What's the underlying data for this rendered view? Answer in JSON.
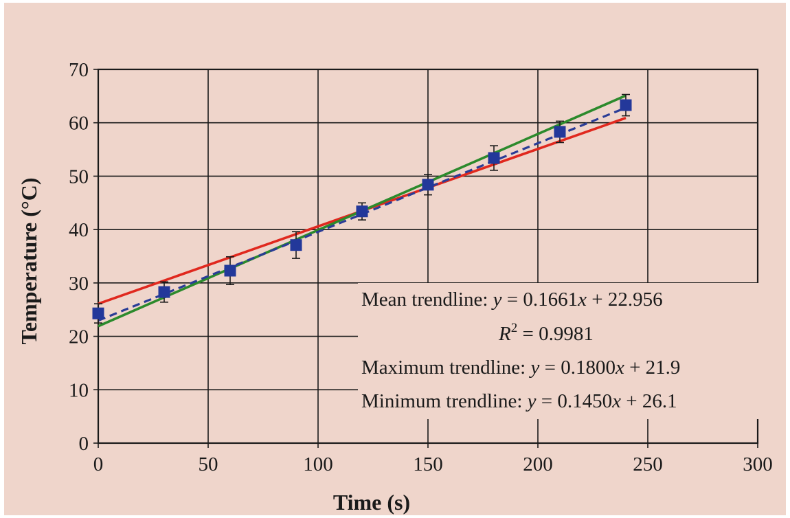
{
  "chart_data": {
    "type": "scatter",
    "title": "",
    "xlabel": "Time (s)",
    "ylabel": "Temperature (°C)",
    "xlim": [
      0,
      300
    ],
    "ylim": [
      0,
      70
    ],
    "xticks": [
      0,
      50,
      100,
      150,
      200,
      250,
      300
    ],
    "yticks": [
      0,
      10,
      20,
      30,
      40,
      50,
      60,
      70
    ],
    "grid": true,
    "points": {
      "x": [
        0,
        30,
        60,
        90,
        120,
        150,
        180,
        210,
        240
      ],
      "y": [
        24.3,
        28.3,
        32.3,
        37.1,
        43.4,
        48.4,
        53.4,
        58.3,
        63.3
      ],
      "error": [
        1.8,
        1.9,
        2.6,
        2.5,
        1.6,
        1.9,
        2.3,
        2.0,
        2.0
      ],
      "color": "#23389a"
    },
    "lines": [
      {
        "label": "Mean trendline",
        "slope": 0.1661,
        "intercept": 22.956,
        "x_range": [
          0,
          240
        ],
        "color": "#2a3c96",
        "style": "dashed"
      },
      {
        "label": "Maximum trendline",
        "slope": 0.18,
        "intercept": 21.9,
        "x_range": [
          0,
          240
        ],
        "color": "#2c8a2c",
        "style": "solid"
      },
      {
        "label": "Minimum trendline",
        "slope": 0.145,
        "intercept": 26.1,
        "x_range": [
          0,
          240
        ],
        "color": "#e0281e",
        "style": "solid"
      }
    ],
    "annotations": {
      "mean_prefix": "Mean trendline: ",
      "mean_var": "y",
      "mean_expr": " = 0.1661",
      "mean_x": "x",
      "mean_rest": " + 22.956",
      "r2_base": "R",
      "r2_exp": "2",
      "r2_rest": " = 0.9981",
      "max_prefix": "Maximum trendline: ",
      "max_var": "y",
      "max_expr": " = 0.1800",
      "max_x": "x",
      "max_rest": " + 21.9",
      "min_prefix": "Minimum trendline: ",
      "min_var": "y",
      "min_expr": " = 0.1450",
      "min_x": "x",
      "min_rest": " + 26.1"
    }
  },
  "colors": {
    "background": "#efd5cb",
    "axis": "#1a1a1a"
  }
}
